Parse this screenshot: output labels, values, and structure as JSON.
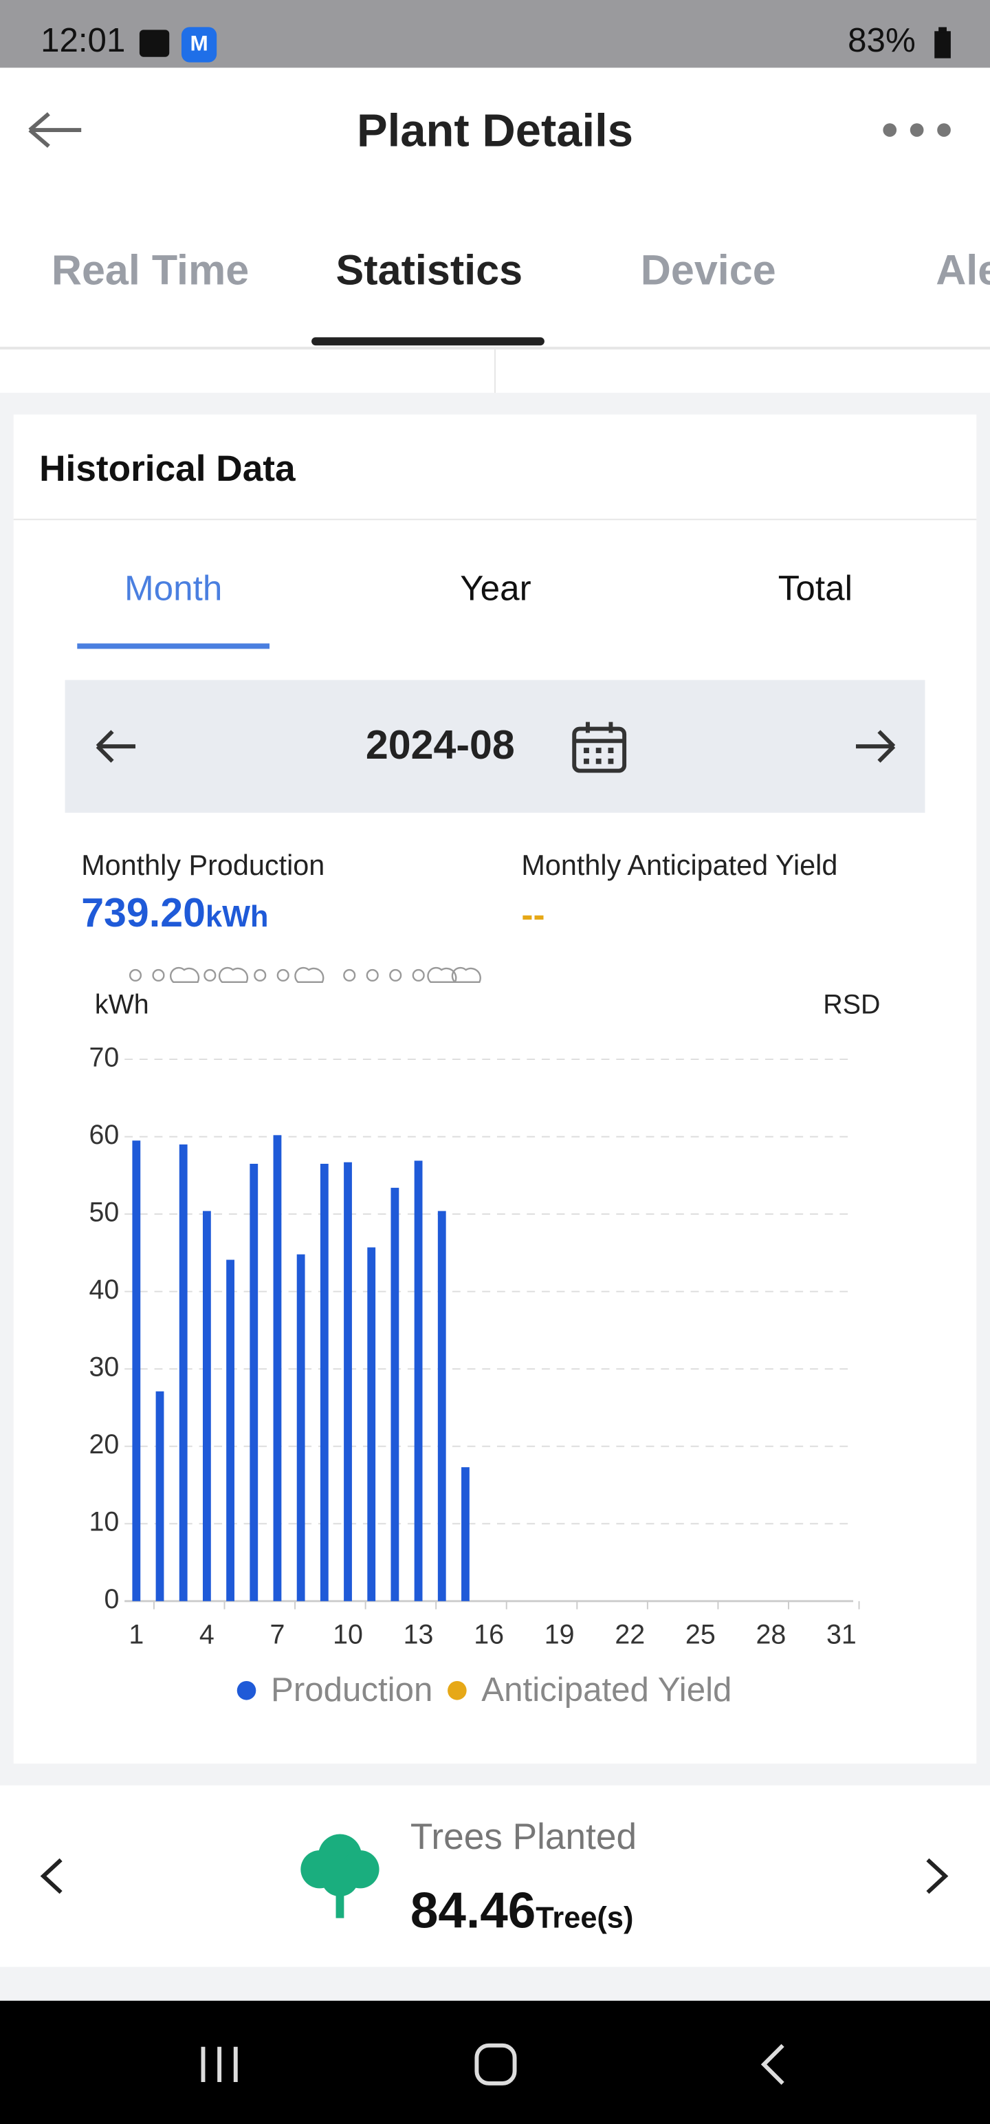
{
  "status_bar": {
    "time": "12:01",
    "battery": "83%"
  },
  "header": {
    "title": "Plant Details"
  },
  "tabs": [
    "Real Time",
    "Statistics",
    "Device",
    "Ale"
  ],
  "historical": {
    "title": "Historical Data",
    "periods": [
      "Month",
      "Year",
      "Total"
    ],
    "date": "2024-08",
    "production_label": "Monthly Production",
    "production_value": "739.20",
    "production_unit": "kWh",
    "anticipated_label": "Monthly Anticipated Yield",
    "anticipated_value": "--"
  },
  "chart_data": {
    "type": "bar",
    "y_label": "kWh",
    "y2_label": "RSD",
    "x": [
      1,
      2,
      3,
      4,
      5,
      6,
      7,
      8,
      9,
      10,
      11,
      12,
      13,
      14,
      15
    ],
    "series": [
      {
        "name": "Production",
        "color": "#1f5ad8",
        "values": [
          59.5,
          27.1,
          59.0,
          50.4,
          44.1,
          56.5,
          60.2,
          44.8,
          56.5,
          56.7,
          45.7,
          53.4,
          56.9,
          50.4,
          17.3
        ]
      },
      {
        "name": "Anticipated Yield",
        "color": "#e6a817",
        "values": [
          null,
          null,
          null,
          null,
          null,
          null,
          null,
          null,
          null,
          null,
          null,
          null,
          null,
          null,
          null
        ]
      }
    ],
    "xlim": [
      0.5,
      31.5
    ],
    "xticks": [
      1,
      4,
      7,
      10,
      13,
      16,
      19,
      22,
      25,
      28,
      31
    ],
    "ylim": [
      0,
      70
    ],
    "yticks": [
      0,
      10,
      20,
      30,
      40,
      50,
      60,
      70
    ],
    "grid": true
  },
  "trees": {
    "label": "Trees Planted",
    "value": "84.46",
    "unit": "Tree(s)"
  }
}
